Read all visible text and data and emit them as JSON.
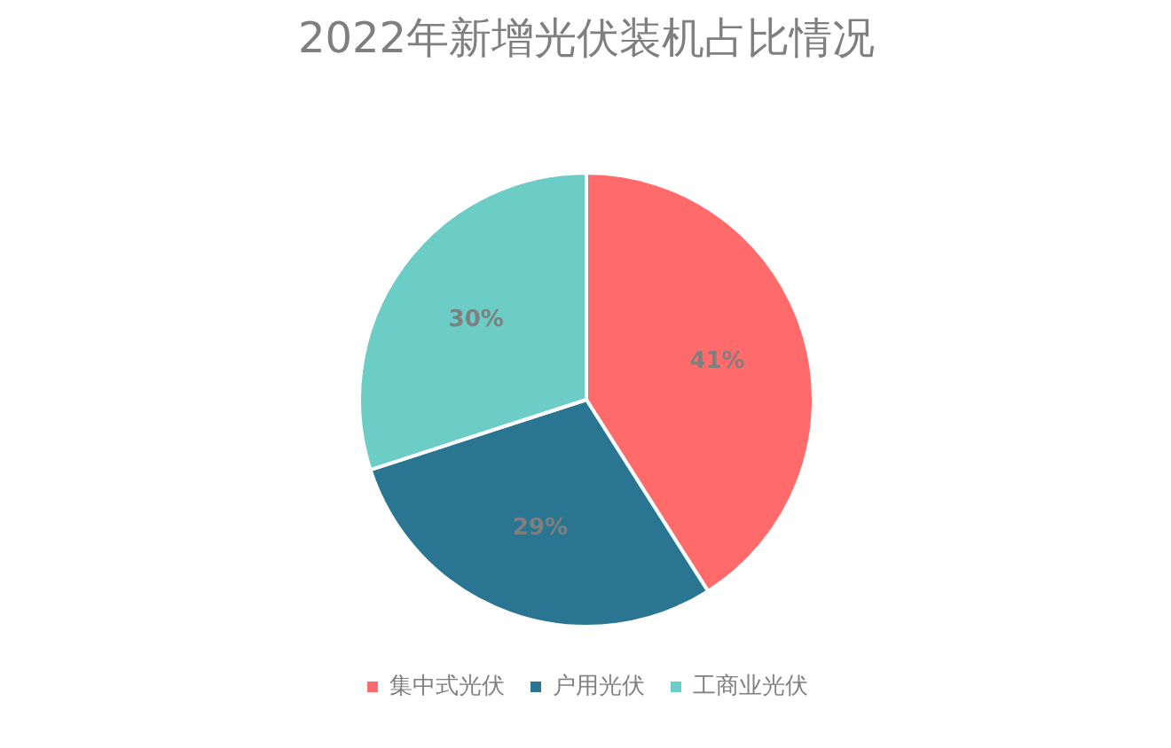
{
  "chart_data": {
    "type": "pie",
    "title": "2022年新增光伏装机占比情况",
    "categories": [
      "集中式光伏",
      "户用光伏",
      "工商业光伏"
    ],
    "values": [
      41,
      29,
      30
    ],
    "colors": [
      "#ff6b6b",
      "#2a7692",
      "#6ccdc7"
    ],
    "value_labels": [
      "41%",
      "29%",
      "30%"
    ],
    "legend": "bottom"
  }
}
